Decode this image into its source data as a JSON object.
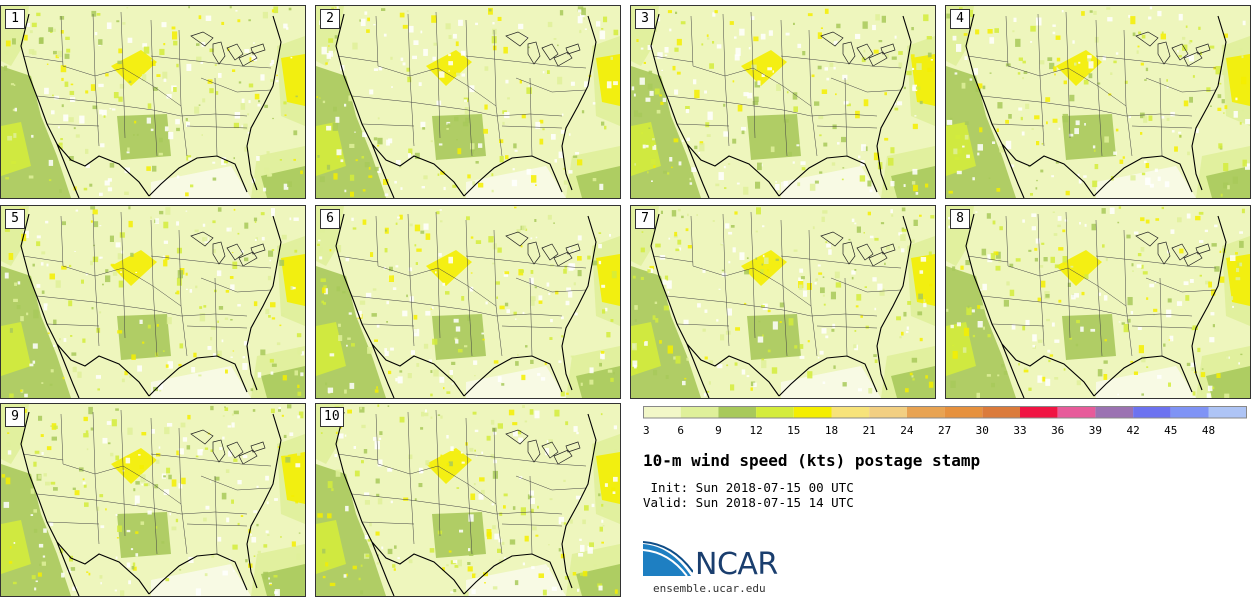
{
  "title": "10-m wind speed (kts) postage stamp",
  "init_line": " Init: Sun 2018-07-15 00 UTC",
  "valid_line": "Valid: Sun 2018-07-15 14 UTC",
  "stamps": [
    "1",
    "2",
    "3",
    "4",
    "5",
    "6",
    "7",
    "8",
    "9",
    "10"
  ],
  "colorbar": {
    "colors": [
      "#f2f7c8",
      "#dff09a",
      "#a8c95b",
      "#d4ec3c",
      "#f4ee00",
      "#f7e37a",
      "#f2cf82",
      "#e8a352",
      "#e6913e",
      "#db7b3b",
      "#f01443",
      "#e75b9a",
      "#9b72b2",
      "#6c72f0",
      "#7f93f5",
      "#aec4f5"
    ],
    "labels": [
      "3",
      "6",
      "9",
      "12",
      "15",
      "18",
      "21",
      "24",
      "27",
      "30",
      "33",
      "36",
      "39",
      "42",
      "45",
      "48"
    ]
  },
  "logo": {
    "brand": "NCAR",
    "url": "ensemble.ucar.edu"
  }
}
